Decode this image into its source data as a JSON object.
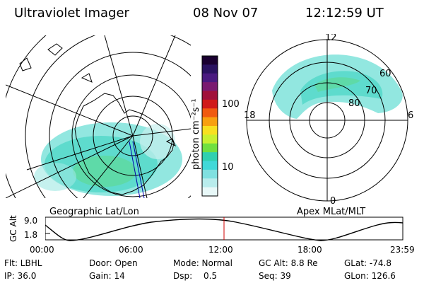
{
  "header": {
    "instrument": "Ultraviolet Imager",
    "date": "08 Nov 07",
    "time": "12:12:59 UT"
  },
  "left_panel": {
    "caption": "Geographic Lat/Lon"
  },
  "right_panel": {
    "caption": "Apex MLat/MLT",
    "mlt_labels": [
      "12",
      "18",
      "6",
      "0"
    ],
    "mlat_labels": [
      "60",
      "70",
      "80"
    ]
  },
  "colorbar": {
    "unit_label": "photon cm⁻²s⁻¹",
    "ticks": [
      "100",
      "10"
    ],
    "colors": [
      "#1a0030",
      "#2a1260",
      "#4a1a80",
      "#7a1a70",
      "#a0103a",
      "#d01a1a",
      "#f05a10",
      "#f8a010",
      "#f8e020",
      "#c8f030",
      "#70e040",
      "#30d0b0",
      "#40d8d8",
      "#80e0e0",
      "#b8ecec",
      "#e8f8f8"
    ]
  },
  "altitude_plot": {
    "ylabel": "GC Alt",
    "yticks": [
      "9.0",
      "1.8"
    ],
    "xticks": [
      "00:00",
      "06:00",
      "12:00",
      "18:00",
      "23:59"
    ],
    "marker_color": "#d00000"
  },
  "info": {
    "flt": "Flt: LBHL",
    "door": "Door: Open",
    "mode": "Mode: Normal",
    "gc_alt": "GC Alt: 8.8 Re",
    "glat": "GLat: -74.8",
    "ip": "IP: 36.0",
    "gain": "Gain: 14",
    "dsp_label": "Dsp:",
    "dsp_value": "0.5",
    "seq": "Seq: 39",
    "glon": "GLon: 126.6"
  }
}
